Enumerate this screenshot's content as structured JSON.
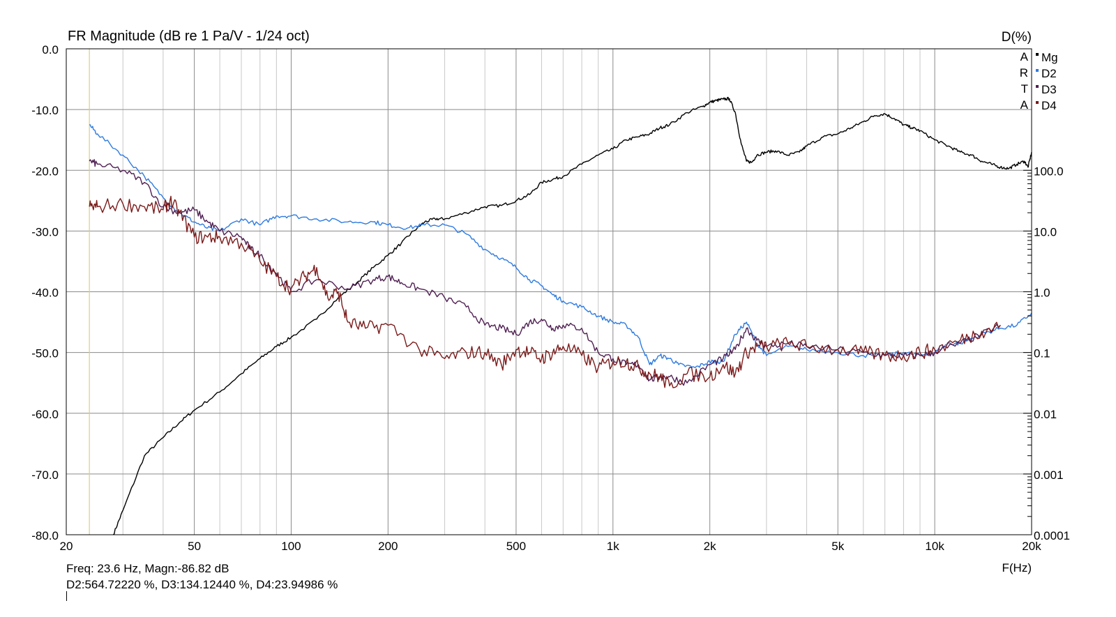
{
  "chart_data": {
    "type": "line",
    "title": "FR Magnitude (dB re 1 Pa/V - 1/24 oct)",
    "right_axis_label": "D(%)",
    "xlabel": "F(Hz)",
    "x_scale": "log",
    "xlim": [
      20,
      20000
    ],
    "ylim": [
      -80,
      0
    ],
    "y_ticks": [
      "0.0",
      "-10.0",
      "-20.0",
      "-30.0",
      "-40.0",
      "-50.0",
      "-60.0",
      "-70.0",
      "-80.0"
    ],
    "x_ticks": [
      "20",
      "50",
      "100",
      "200",
      "500",
      "1k",
      "2k",
      "5k",
      "10k",
      "20k"
    ],
    "x_tick_values": [
      20,
      50,
      100,
      200,
      500,
      1000,
      2000,
      5000,
      10000,
      20000
    ],
    "right_ticks": [
      "100.0",
      "10.0",
      "1.0",
      "0.1",
      "0.01",
      "0.001",
      "0.0001"
    ],
    "right_tick_dB": [
      -20,
      -30,
      -40,
      -50,
      -60,
      -70,
      -80
    ],
    "cursor_freq": 23.6,
    "grid": true,
    "legend_position": "top-right",
    "legend_prefix": [
      "A",
      "R",
      "T",
      "A"
    ],
    "series": [
      {
        "name": "Mg",
        "color": "#000000",
        "x": [
          28,
          30,
          35,
          40,
          45,
          50,
          60,
          70,
          80,
          90,
          100,
          120,
          140,
          160,
          180,
          200,
          220,
          240,
          260,
          280,
          300,
          350,
          400,
          450,
          500,
          550,
          600,
          650,
          700,
          800,
          900,
          1000,
          1100,
          1200,
          1300,
          1400,
          1500,
          1700,
          1900,
          2000,
          2100,
          2200,
          2300,
          2400,
          2500,
          2600,
          2700,
          2800,
          3000,
          3200,
          3500,
          3800,
          4000,
          4500,
          5000,
          5500,
          6000,
          6500,
          7000,
          7500,
          8000,
          8500,
          9000,
          10000,
          11000,
          12000,
          13000,
          14000,
          15000,
          16000,
          17000,
          18000,
          19000,
          19500,
          20000
        ],
        "y": [
          -80,
          -76,
          -67,
          -64,
          -61.5,
          -59.5,
          -56.5,
          -53.5,
          -51,
          -49,
          -47.5,
          -44.5,
          -41,
          -38.5,
          -36,
          -34,
          -32,
          -30,
          -28.5,
          -28,
          -28,
          -27,
          -26,
          -25.8,
          -25,
          -24,
          -22,
          -21.5,
          -21,
          -19,
          -17.5,
          -16.5,
          -15,
          -14.5,
          -14,
          -13,
          -12.5,
          -10.5,
          -9.5,
          -8.8,
          -8.5,
          -8.3,
          -8.2,
          -10.5,
          -15.5,
          -18.5,
          -18.7,
          -17.5,
          -17,
          -16.8,
          -17.5,
          -17,
          -16,
          -14.5,
          -14,
          -13,
          -12,
          -11,
          -10.7,
          -11.5,
          -12.5,
          -13,
          -13.5,
          -15,
          -16,
          -17,
          -17.5,
          -18.5,
          -19,
          -19.5,
          -19.7,
          -19,
          -18.5,
          -19.5,
          -17
        ]
      },
      {
        "name": "D2",
        "color": "#2e7be0",
        "x": [
          23.6,
          25,
          30,
          35,
          40,
          45,
          50,
          55,
          60,
          70,
          80,
          90,
          100,
          120,
          150,
          180,
          200,
          230,
          260,
          300,
          350,
          400,
          450,
          500,
          550,
          600,
          650,
          700,
          800,
          900,
          1000,
          1100,
          1200,
          1300,
          1400,
          1500,
          1600,
          1800,
          2000,
          2100,
          2200,
          2400,
          2600,
          2800,
          3000,
          3500,
          4000,
          5000,
          6000,
          7000,
          8000,
          9000,
          10000,
          11000,
          12000,
          14000,
          16000,
          18000,
          20000
        ],
        "y": [
          -12.5,
          -14,
          -17.5,
          -21,
          -24.5,
          -27,
          -28.5,
          -29.5,
          -30,
          -28,
          -29,
          -27.5,
          -27.5,
          -28,
          -28.5,
          -28.5,
          -29,
          -29.5,
          -29,
          -29,
          -30.5,
          -33,
          -34.5,
          -36,
          -38,
          -39,
          -40.5,
          -41.5,
          -42.5,
          -44,
          -45,
          -45.5,
          -47.5,
          -52,
          -50.5,
          -51,
          -52,
          -52.5,
          -51.5,
          -51.5,
          -51.5,
          -47,
          -45,
          -48.5,
          -50.5,
          -49,
          -49.5,
          -50,
          -50.5,
          -50.5,
          -50,
          -50.5,
          -50,
          -48.5,
          -48.5,
          -47,
          -46,
          -45.5,
          -43.5
        ]
      },
      {
        "name": "D3",
        "color": "#4f1f52",
        "x": [
          23.6,
          25,
          30,
          35,
          40,
          45,
          50,
          55,
          60,
          70,
          75,
          80,
          90,
          100,
          120,
          150,
          180,
          200,
          220,
          250,
          300,
          350,
          400,
          450,
          500,
          550,
          600,
          650,
          700,
          800,
          900,
          1000,
          1100,
          1200,
          1300,
          1400,
          1500,
          1700,
          2000,
          2200,
          2400,
          2600,
          2800,
          3000,
          3500,
          4000,
          5000,
          6000,
          7000,
          8000,
          9000,
          10000,
          12000,
          14000,
          16000
        ],
        "y": [
          -18.5,
          -19,
          -20,
          -22,
          -26,
          -27,
          -26.5,
          -28.5,
          -30,
          -31,
          -33,
          -34,
          -37,
          -40,
          -38,
          -39.5,
          -38,
          -37.5,
          -38.5,
          -39.5,
          -41,
          -42.5,
          -45.5,
          -46,
          -47,
          -45,
          -44.5,
          -46,
          -45.5,
          -46,
          -50,
          -51,
          -52,
          -52,
          -54.5,
          -54,
          -54,
          -55,
          -52,
          -51,
          -49.5,
          -46,
          -48,
          -49,
          -48.5,
          -49,
          -49.5,
          -50,
          -50.5,
          -50.5,
          -50.5,
          -50,
          -48.5,
          -47,
          -45.5
        ]
      },
      {
        "name": "D4",
        "color": "#7b1a1a",
        "x": [
          23.6,
          25,
          30,
          35,
          40,
          42,
          45,
          50,
          55,
          60,
          70,
          80,
          90,
          100,
          110,
          120,
          130,
          140,
          150,
          170,
          200,
          250,
          300,
          350,
          400,
          450,
          500,
          550,
          600,
          650,
          700,
          800,
          900,
          1000,
          1100,
          1200,
          1300,
          1400,
          1500,
          1700,
          2000,
          2200,
          2400,
          2600,
          2800,
          3000,
          3500,
          4000,
          5000,
          6000,
          7000,
          8000,
          9000,
          10000,
          12000,
          14000,
          16000
        ],
        "y": [
          -26,
          -26,
          -25.5,
          -26,
          -26.5,
          -25,
          -27,
          -31,
          -31,
          -31,
          -32,
          -35,
          -37.5,
          -39.5,
          -37.5,
          -36,
          -41,
          -40,
          -45,
          -46,
          -45.5,
          -49.5,
          -51,
          -50,
          -50,
          -52,
          -49.5,
          -50,
          -51,
          -50,
          -49,
          -50.5,
          -52.5,
          -51.5,
          -51.5,
          -52.5,
          -53.5,
          -54,
          -55.5,
          -53.5,
          -54,
          -52,
          -53.5,
          -50,
          -49,
          -49,
          -48.5,
          -49,
          -49.5,
          -50,
          -50.5,
          -50.5,
          -50,
          -49.5,
          -48,
          -46.5,
          -45.5
        ]
      }
    ]
  },
  "readout": {
    "line1": "Freq: 23.6 Hz, Magn:-86.82 dB",
    "line2": "D2:564.72220 %, D3:134.12440 %, D4:23.94986 %"
  }
}
